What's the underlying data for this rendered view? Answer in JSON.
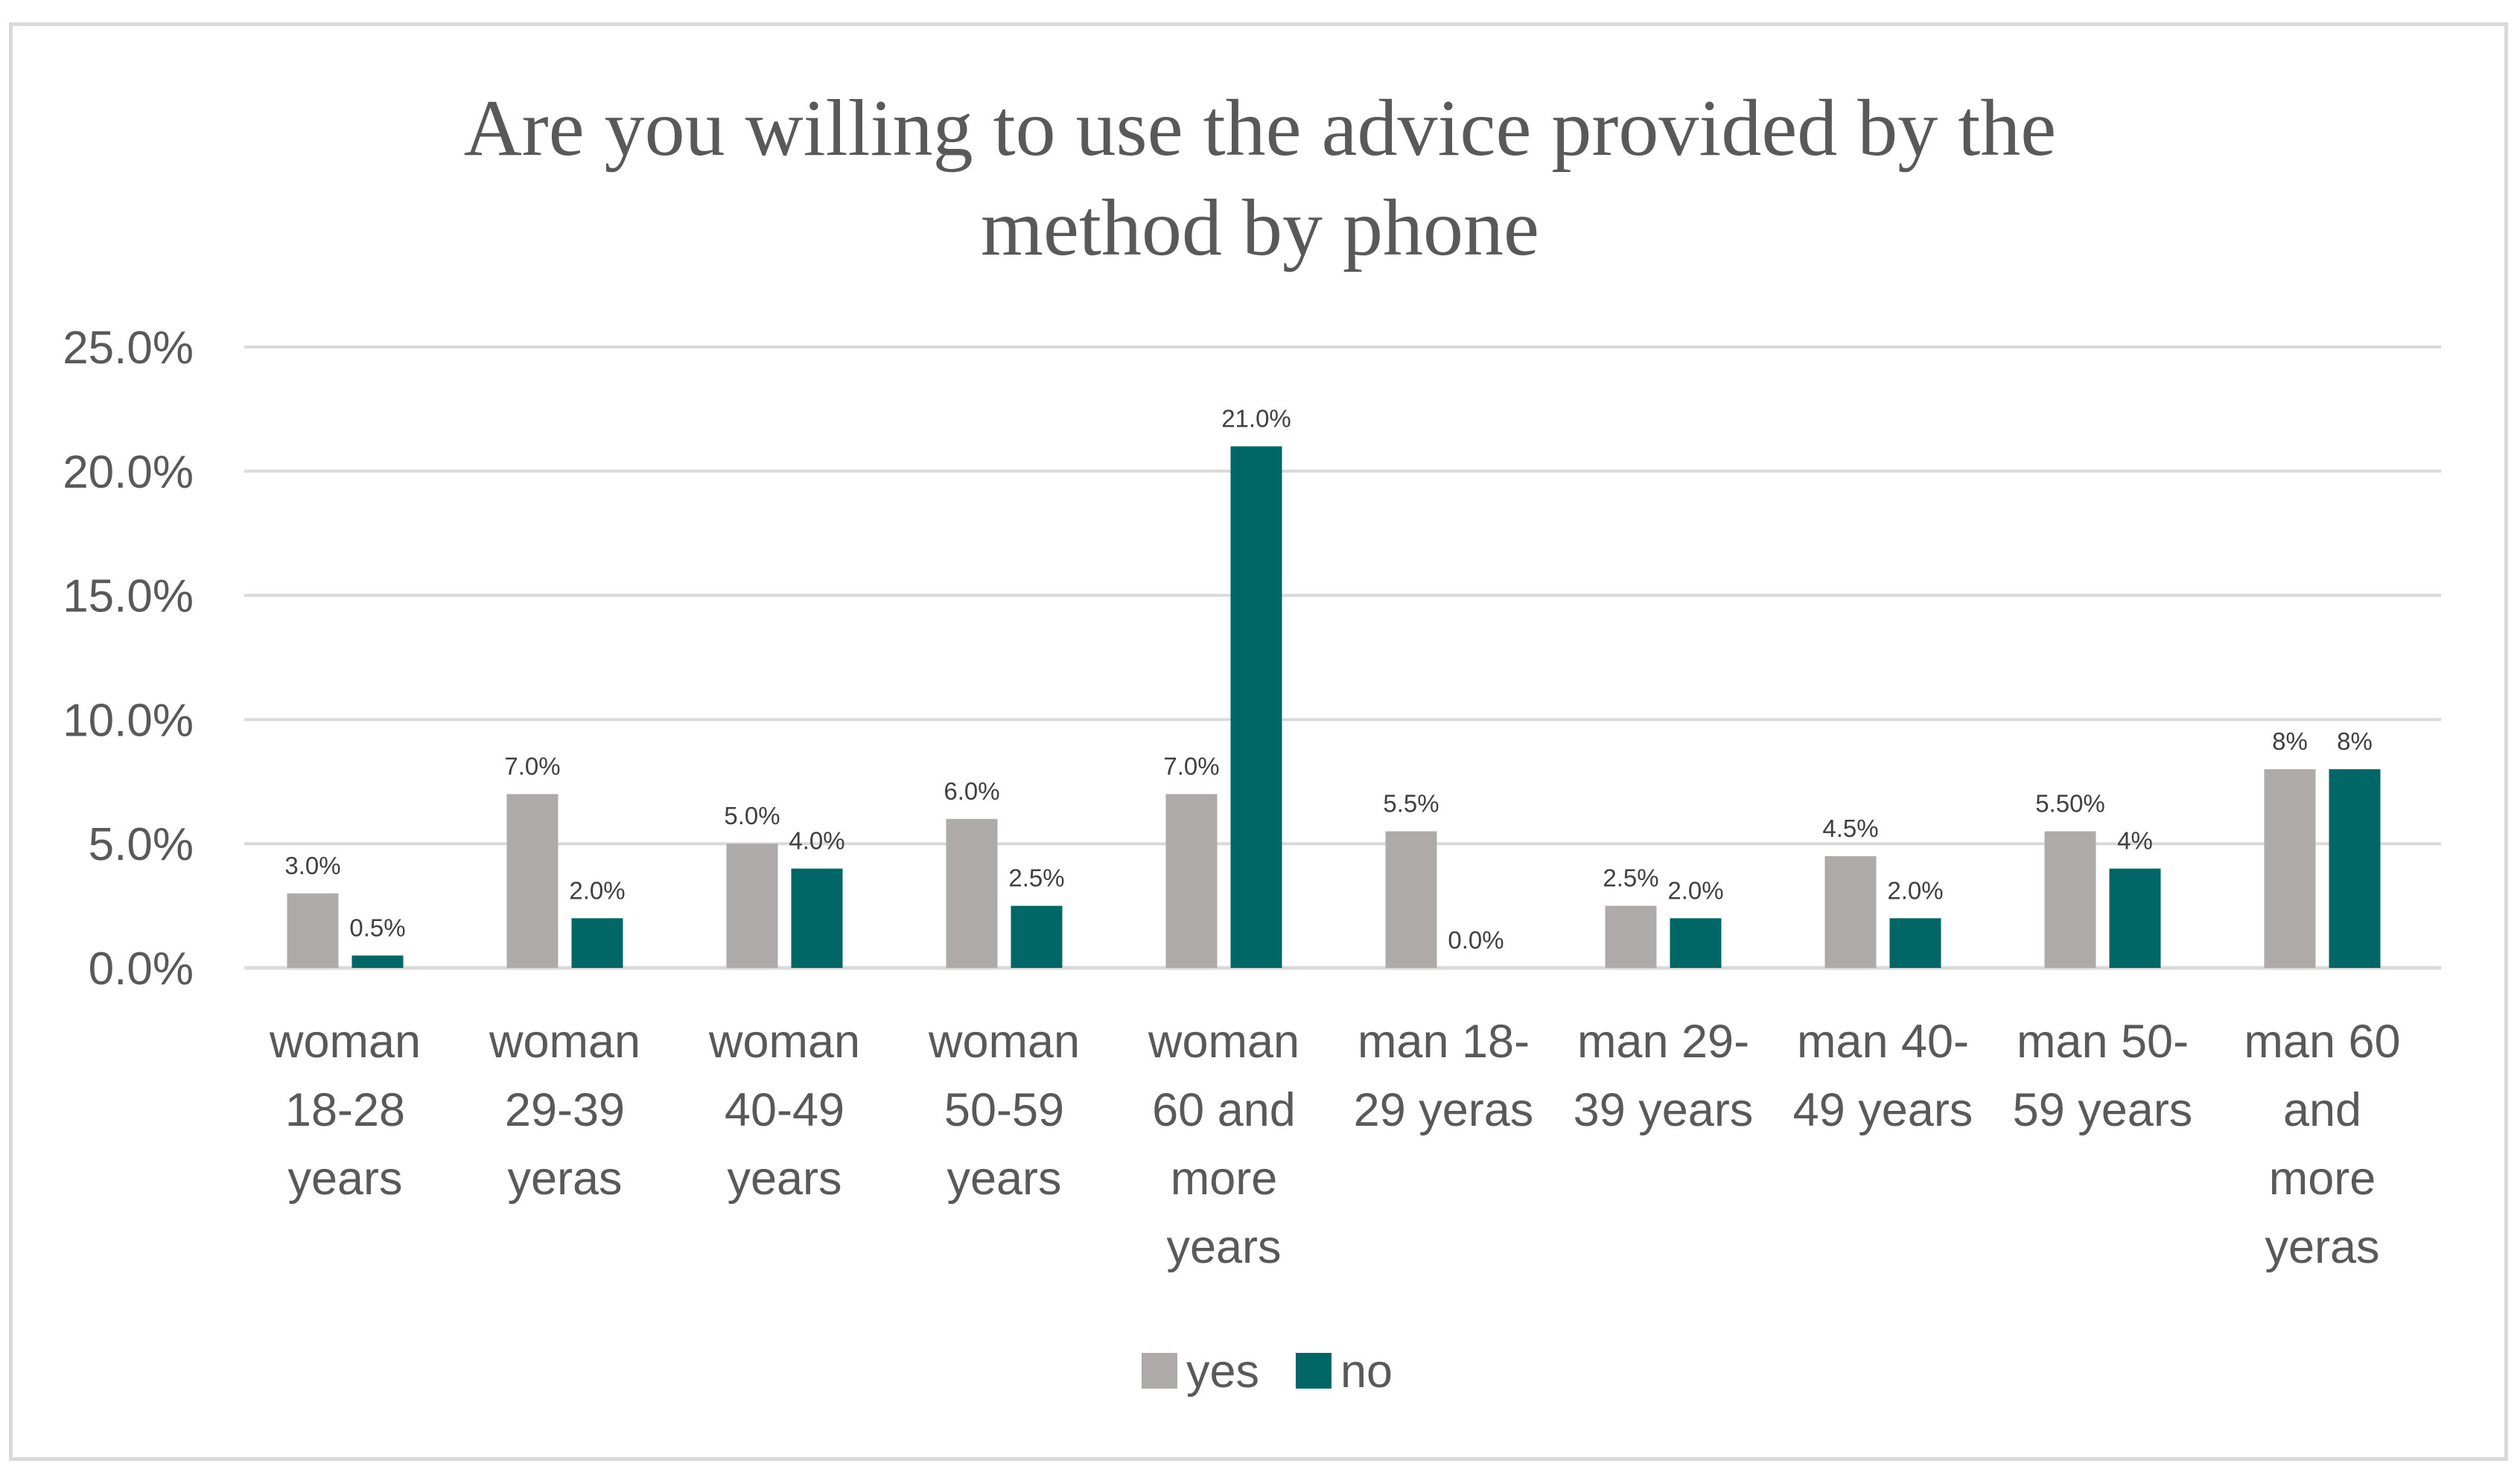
{
  "chart_data": {
    "type": "bar",
    "title_lines": [
      "Are you willing to use the advice provided by the",
      "method by phone"
    ],
    "categories": [
      [
        "woman",
        "18-28",
        "years"
      ],
      [
        "woman",
        "29-39",
        "yeras"
      ],
      [
        "woman",
        "40-49",
        "years"
      ],
      [
        "woman",
        "50-59",
        "years"
      ],
      [
        "woman",
        "60 and",
        "more",
        "years"
      ],
      [
        "man 18-",
        "29 yeras"
      ],
      [
        "man 29-",
        "39 years"
      ],
      [
        "man 40-",
        "49 years"
      ],
      [
        "man 50-",
        "59 years"
      ],
      [
        "man 60",
        "and",
        "more",
        "yeras"
      ]
    ],
    "series": [
      {
        "name": "yes",
        "color": "#aeaaaa",
        "values": [
          0.03,
          0.07,
          0.05,
          0.06,
          0.07,
          0.055,
          0.025,
          0.045,
          0.055,
          0.08
        ],
        "labels": [
          "3.0%",
          "7.0%",
          "5.0%",
          "6.0%",
          "7.0%",
          "5.5%",
          "2.5%",
          "4.5%",
          "5.50%",
          "8%"
        ]
      },
      {
        "name": "no",
        "color": "#006666",
        "values": [
          0.005,
          0.02,
          0.04,
          0.025,
          0.21,
          0.0,
          0.02,
          0.02,
          0.04,
          0.08
        ],
        "labels": [
          "0.5%",
          "2.0%",
          "4.0%",
          "2.5%",
          "21.0%",
          "0.0%",
          "2.0%",
          "2.0%",
          "4%",
          "8%"
        ]
      }
    ],
    "ylim": [
      0,
      0.25
    ],
    "yticks": [
      0,
      0.05,
      0.1,
      0.15,
      0.2,
      0.25
    ],
    "ytick_labels": [
      "0.0%",
      "5.0%",
      "10.0%",
      "15.0%",
      "20.0%",
      "25.0%"
    ],
    "grid": true,
    "gridline_color": "#d9d9d9",
    "legend_position": "bottom"
  }
}
